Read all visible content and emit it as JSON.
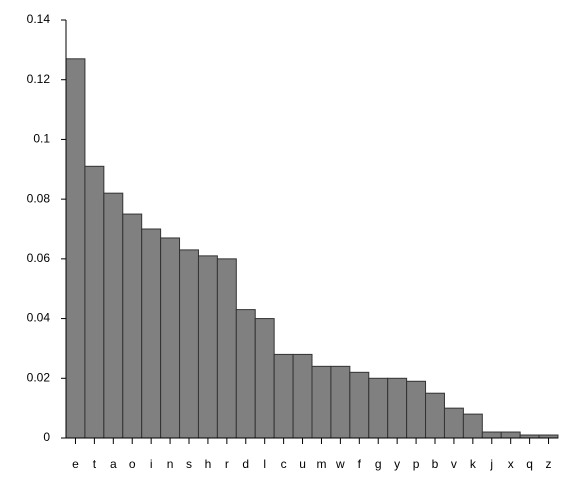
{
  "chart_data": {
    "type": "bar",
    "categories": [
      "e",
      "t",
      "a",
      "o",
      "i",
      "n",
      "s",
      "h",
      "r",
      "d",
      "l",
      "c",
      "u",
      "m",
      "w",
      "f",
      "g",
      "y",
      "p",
      "b",
      "v",
      "k",
      "j",
      "x",
      "q",
      "z"
    ],
    "values": [
      0.127,
      0.091,
      0.082,
      0.075,
      0.07,
      0.067,
      0.063,
      0.061,
      0.06,
      0.043,
      0.04,
      0.028,
      0.028,
      0.024,
      0.024,
      0.022,
      0.02,
      0.02,
      0.019,
      0.015,
      0.01,
      0.008,
      0.002,
      0.002,
      0.001,
      0.001
    ],
    "color": "#808080",
    "ylim": [
      0,
      0.14
    ],
    "yticks": [
      0,
      0.02,
      0.04,
      0.06,
      0.08,
      0.1,
      0.12,
      0.14
    ],
    "grid": false
  }
}
